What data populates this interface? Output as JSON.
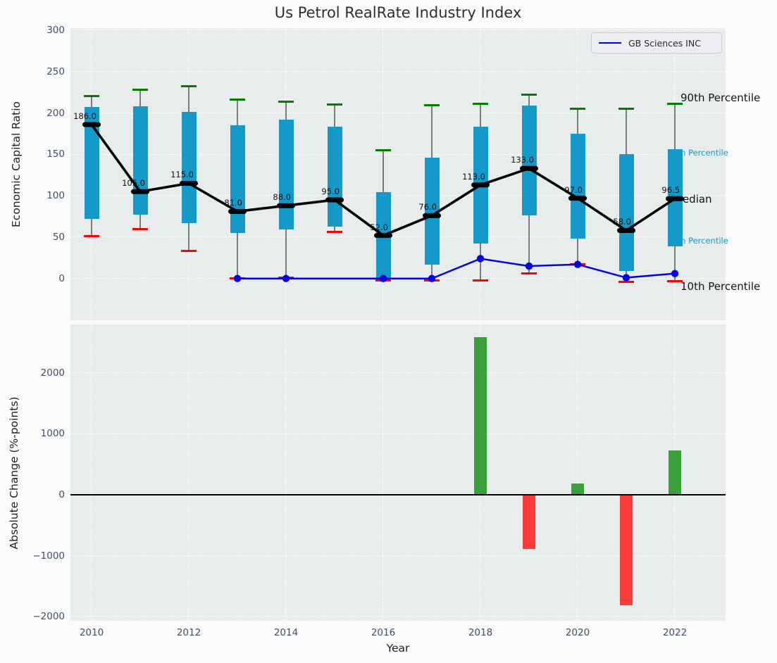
{
  "title": "Us Petrol RealRate Industry Index",
  "legend": {
    "label": "GB Sciences INC"
  },
  "colors": {
    "box": "#1599c9",
    "p90_cap": "#007c00",
    "p10_cap": "#fe0000",
    "median_line": "#000000",
    "company_line": "#0000ee",
    "bar_positive": "#3aa03a",
    "bar_negative": "#fb3a3a",
    "axes_bg": "#e9eced",
    "tick_text": "#3e4f66"
  },
  "chart_data": [
    {
      "type": "box-percentile-timeseries",
      "title": "Us Petrol RealRate Industry Index",
      "ylabel": "Economic Capital Ratio",
      "ylim": [
        -50,
        301
      ],
      "grid": true,
      "legend_position": "upper right",
      "yticks": [
        0,
        50,
        100,
        150,
        200,
        250,
        300
      ],
      "xticks": [
        2010,
        2012,
        2014,
        2016,
        2018,
        2020,
        2022
      ],
      "years": [
        2010,
        2011,
        2012,
        2013,
        2014,
        2015,
        2016,
        2017,
        2018,
        2019,
        2020,
        2021,
        2022
      ],
      "series": {
        "p90": [
          220,
          228,
          232,
          216,
          214,
          210,
          155,
          209,
          211,
          222,
          205,
          205,
          211
        ],
        "p75": [
          207,
          208,
          201,
          185,
          192,
          183,
          104,
          146,
          183,
          209,
          175,
          150,
          156
        ],
        "median": [
          186,
          105,
          115,
          81,
          88,
          95,
          52,
          76,
          113,
          133,
          97,
          58,
          96.5
        ],
        "p25": [
          72,
          77,
          67,
          55,
          59,
          63,
          -1,
          17,
          42,
          76,
          48,
          9,
          39
        ],
        "p10": [
          51,
          60,
          33,
          0,
          1,
          56,
          -2,
          -2,
          -2,
          6,
          17,
          -4,
          -3
        ]
      },
      "median_labels": [
        "186.0",
        "105.0",
        "115.0",
        "81.0",
        "88.0",
        "95.0",
        "52.0",
        "76.0",
        "113.0",
        "133.0",
        "97.0",
        "58.0",
        "96.5"
      ],
      "company_line": {
        "name": "GB Sciences INC",
        "years": [
          2013,
          2014,
          2016,
          2017,
          2018,
          2019,
          2020,
          2021,
          2022
        ],
        "values": [
          0,
          0,
          0,
          0,
          24,
          15,
          17,
          1,
          6
        ]
      },
      "right_labels": [
        {
          "text": "90th Percentile",
          "at_value": 218,
          "x": 966,
          "style": "major"
        },
        {
          "text": "75th Percentile",
          "at_value": 152,
          "x": 947,
          "style": "minor"
        },
        {
          "text": "Median",
          "at_value": 96,
          "x": 956,
          "style": "major"
        },
        {
          "text": "25th Percentile",
          "at_value": 46,
          "x": 947,
          "style": "minor"
        },
        {
          "text": "10th Percentile",
          "at_value": -10,
          "x": 966,
          "style": "major"
        }
      ]
    },
    {
      "type": "bar",
      "ylabel": "Absolute Change (%-points)",
      "xlabel": "Year",
      "ylim": [
        -2080,
        2815
      ],
      "grid": true,
      "yticks": [
        -2000,
        -1000,
        0,
        1000,
        2000
      ],
      "ytick_labels": [
        "−2000",
        "−1000",
        "0",
        "1000",
        "2000"
      ],
      "xticks": [
        2010,
        2012,
        2014,
        2016,
        2018,
        2020,
        2022
      ],
      "xtick_labels": [
        "2010",
        "2012",
        "2014",
        "2016",
        "2018",
        "2020",
        "2022"
      ],
      "categories": [
        2018,
        2019,
        2020,
        2021,
        2022
      ],
      "values": [
        2590,
        -890,
        190,
        -1810,
        730
      ]
    }
  ]
}
